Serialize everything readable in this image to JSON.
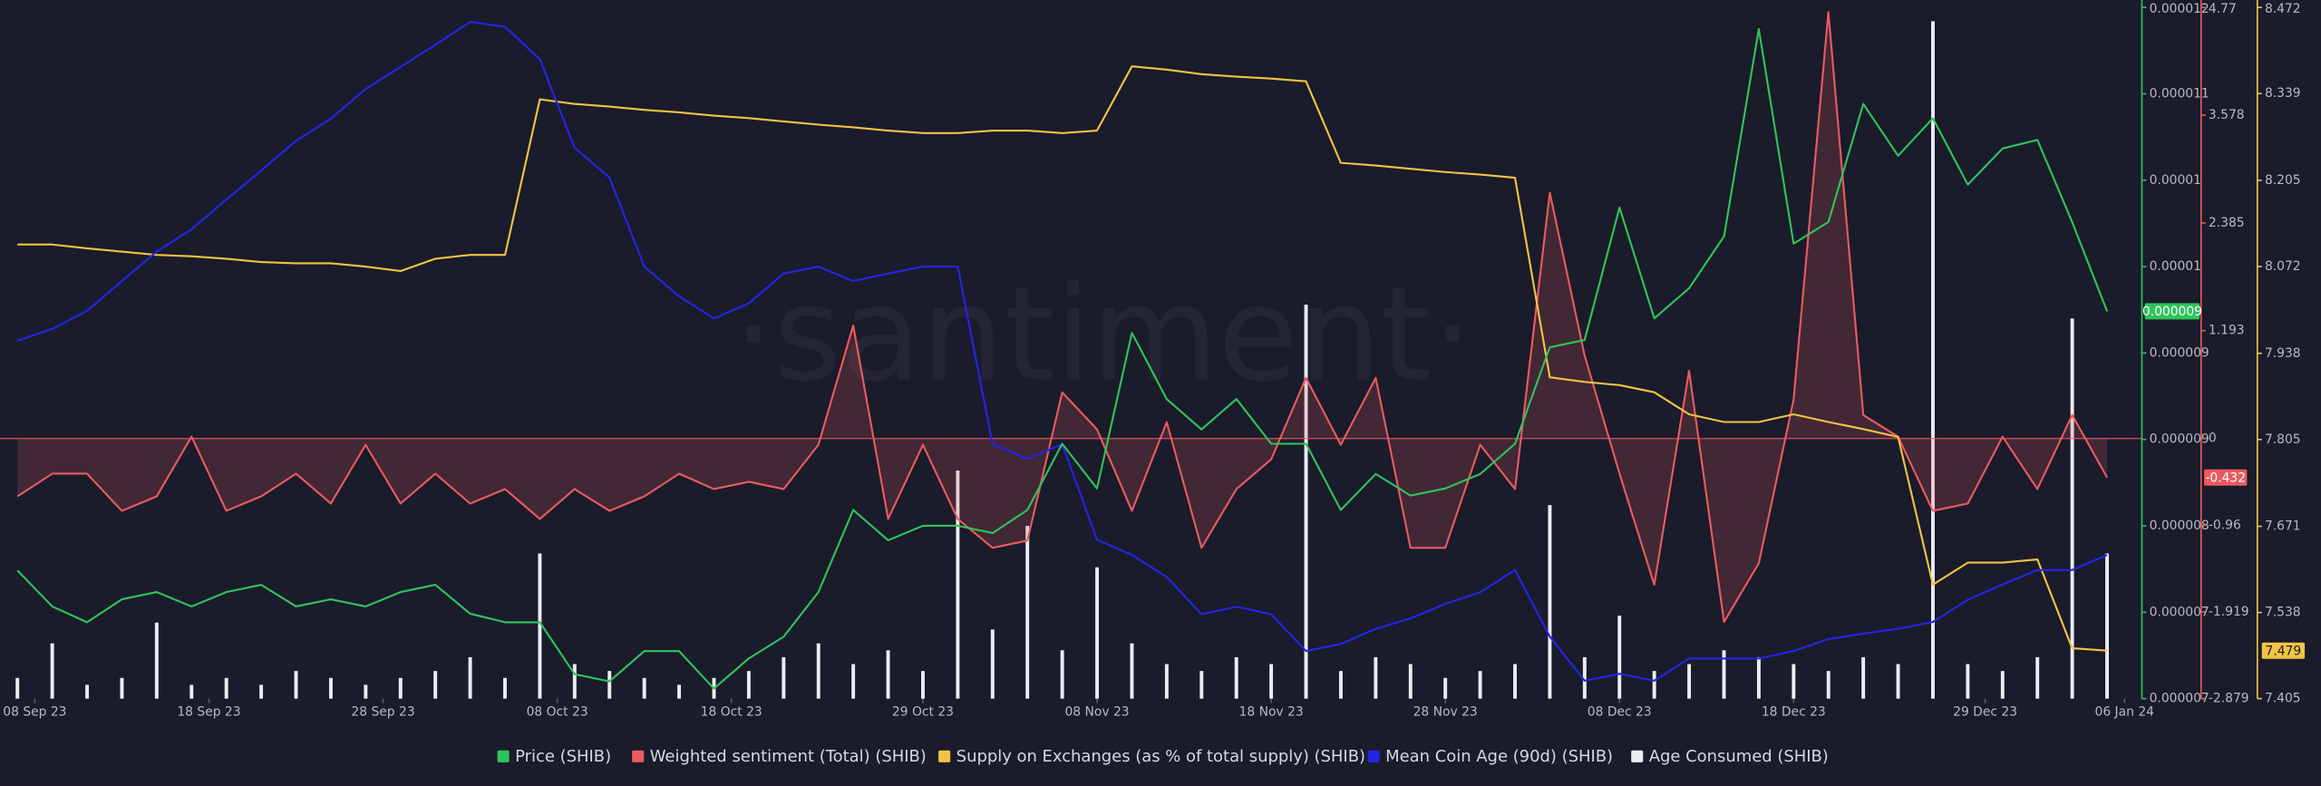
{
  "chart_data": {
    "type": "line",
    "watermark": "·santiment·",
    "x": [
      "2023-09-07",
      "2023-09-09",
      "2023-09-11",
      "2023-09-13",
      "2023-09-15",
      "2023-09-17",
      "2023-09-19",
      "2023-09-21",
      "2023-09-23",
      "2023-09-25",
      "2023-09-27",
      "2023-09-29",
      "2023-10-01",
      "2023-10-03",
      "2023-10-05",
      "2023-10-07",
      "2023-10-09",
      "2023-10-11",
      "2023-10-13",
      "2023-10-15",
      "2023-10-17",
      "2023-10-19",
      "2023-10-21",
      "2023-10-23",
      "2023-10-25",
      "2023-10-27",
      "2023-10-29",
      "2023-10-31",
      "2023-11-02",
      "2023-11-04",
      "2023-11-06",
      "2023-11-08",
      "2023-11-10",
      "2023-11-12",
      "2023-11-14",
      "2023-11-16",
      "2023-11-18",
      "2023-11-20",
      "2023-11-22",
      "2023-11-24",
      "2023-11-26",
      "2023-11-28",
      "2023-11-30",
      "2023-12-02",
      "2023-12-04",
      "2023-12-06",
      "2023-12-08",
      "2023-12-10",
      "2023-12-12",
      "2023-12-14",
      "2023-12-16",
      "2023-12-18",
      "2023-12-20",
      "2023-12-22",
      "2023-12-24",
      "2023-12-26",
      "2023-12-28",
      "2023-12-30",
      "2024-01-01",
      "2024-01-03",
      "2024-01-05"
    ],
    "xlim": [
      "2023-09-06",
      "2024-01-07"
    ],
    "xticks": [
      {
        "value": "2023-09-08",
        "label": "08 Sep 23"
      },
      {
        "value": "2023-09-18",
        "label": "18 Sep 23"
      },
      {
        "value": "2023-09-28",
        "label": "28 Sep 23"
      },
      {
        "value": "2023-10-08",
        "label": "08 Oct 23"
      },
      {
        "value": "2023-10-18",
        "label": "18 Oct 23"
      },
      {
        "value": "2023-10-29",
        "label": "29 Oct 23"
      },
      {
        "value": "2023-11-08",
        "label": "08 Nov 23"
      },
      {
        "value": "2023-11-18",
        "label": "18 Nov 23"
      },
      {
        "value": "2023-11-28",
        "label": "28 Nov 23"
      },
      {
        "value": "2023-12-08",
        "label": "08 Dec 23"
      },
      {
        "value": "2023-12-18",
        "label": "18 Dec 23"
      },
      {
        "value": "2023-12-29",
        "label": "29 Dec 23"
      },
      {
        "value": "2024-01-06",
        "label": "06 Jan 24"
      }
    ],
    "ylim": [
      6.7e-06,
      1.15e-05
    ],
    "yticks": [
      {
        "value": 6.7e-06,
        "label": "0.000007"
      },
      {
        "value": 7.3e-06,
        "label": "0.000007"
      },
      {
        "value": 7.9e-06,
        "label": "0.000008"
      },
      {
        "value": 8.5e-06,
        "label": "0.000009"
      },
      {
        "value": 9.1e-06,
        "label": "0.000009"
      },
      {
        "value": 9.7e-06,
        "label": "0.00001"
      },
      {
        "value": 1.03e-05,
        "label": "0.00001"
      },
      {
        "value": 1.09e-05,
        "label": "0.000011"
      },
      {
        "value": 1.15e-05,
        "label": "0.000012"
      }
    ],
    "y2lim": [
      -2.879,
      4.77
    ],
    "y2ticks": [
      -2.879,
      -1.919,
      -0.96,
      0,
      1.193,
      2.385,
      3.578,
      4.77
    ],
    "y3lim": [
      7.405,
      8.472
    ],
    "y3ticks": [
      7.405,
      7.538,
      7.671,
      7.805,
      7.938,
      8.072,
      8.205,
      8.339,
      8.472
    ],
    "series": [
      {
        "name": "Price (SHIB)",
        "color": "#2fc45a",
        "axis": "y",
        "values": [
          7.59e-06,
          7.34e-06,
          7.23e-06,
          7.39e-06,
          7.44e-06,
          7.34e-06,
          7.44e-06,
          7.49e-06,
          7.34e-06,
          7.39e-06,
          7.34e-06,
          7.44e-06,
          7.49e-06,
          7.29e-06,
          7.23e-06,
          7.23e-06,
          6.87e-06,
          6.82e-06,
          7.03e-06,
          7.03e-06,
          6.77e-06,
          6.98e-06,
          7.13e-06,
          7.44e-06,
          8.01e-06,
          7.8e-06,
          7.9e-06,
          7.9e-06,
          7.85e-06,
          8.01e-06,
          8.47e-06,
          8.16e-06,
          9.24e-06,
          8.78e-06,
          8.57e-06,
          8.78e-06,
          8.47e-06,
          8.47e-06,
          8.01e-06,
          8.26e-06,
          8.11e-06,
          8.16e-06,
          8.26e-06,
          8.47e-06,
          9.14e-06,
          9.19e-06,
          1.011e-05,
          9.34e-06,
          9.55e-06,
          9.91e-06,
          1.135e-05,
          9.86e-06,
          1.001e-05,
          1.083e-05,
          1.047e-05,
          1.073e-05,
          1.027e-05,
          1.052e-05,
          1.058e-05,
          1.001e-05,
          9.39e-06
        ],
        "value_labels": [
          null,
          null,
          null,
          null,
          null,
          null,
          null,
          null,
          null,
          null,
          null,
          null,
          null,
          null,
          null,
          null,
          null,
          null,
          null,
          null,
          null,
          null,
          null,
          null,
          null,
          null,
          null,
          null,
          null,
          null,
          null,
          null,
          null,
          null,
          null,
          null,
          null,
          null,
          null,
          null,
          null,
          null,
          null,
          null,
          null,
          null,
          null,
          null,
          null,
          null,
          null,
          null,
          null,
          null,
          null,
          null,
          null,
          null,
          null,
          null,
          "0.000009"
        ]
      },
      {
        "name": "Weighted sentiment (Total) (SHIB)",
        "color": "#e85b5f",
        "axis": "y2",
        "values": [
          -0.64,
          -0.39,
          -0.39,
          -0.8,
          -0.64,
          0.02,
          -0.8,
          -0.64,
          -0.39,
          -0.72,
          -0.07,
          -0.72,
          -0.39,
          -0.72,
          -0.56,
          -0.89,
          -0.56,
          -0.8,
          -0.64,
          -0.39,
          -0.56,
          -0.48,
          -0.56,
          -0.07,
          1.25,
          -0.89,
          -0.07,
          -0.89,
          -1.21,
          -1.13,
          0.51,
          0.1,
          -0.8,
          0.18,
          -1.21,
          -0.56,
          -0.23,
          0.67,
          -0.07,
          0.67,
          -1.21,
          -1.21,
          -0.07,
          -0.56,
          2.72,
          0.92,
          -0.39,
          -1.62,
          0.75,
          -2.03,
          -1.38,
          0.43,
          4.72,
          0.26,
          0.02,
          -0.8,
          -0.72,
          0.02,
          -0.56,
          0.26,
          -0.432
        ]
      },
      {
        "name": "Supply on Exchanges (as % of total supply) (SHIB)",
        "color": "#f2c443",
        "axis": "y3",
        "values": [
          8.106,
          8.106,
          8.1,
          8.095,
          8.09,
          8.088,
          8.084,
          8.079,
          8.077,
          8.077,
          8.072,
          8.065,
          8.084,
          8.09,
          8.09,
          8.33,
          8.323,
          8.319,
          8.314,
          8.31,
          8.305,
          8.301,
          8.296,
          8.291,
          8.287,
          8.282,
          8.278,
          8.278,
          8.282,
          8.282,
          8.278,
          8.282,
          8.381,
          8.376,
          8.369,
          8.365,
          8.362,
          8.358,
          8.232,
          8.228,
          8.223,
          8.218,
          8.214,
          8.209,
          7.901,
          7.894,
          7.889,
          7.878,
          7.844,
          7.832,
          7.832,
          7.844,
          7.832,
          7.821,
          7.809,
          7.581,
          7.615,
          7.615,
          7.62,
          7.483,
          7.479
        ]
      },
      {
        "name": "Mean Coin Age (90d) (SHIB)",
        "color": "#2424e6",
        "ylim": [
          0,
          100
        ],
        "values": [
          51.8,
          53.5,
          56.1,
          60.4,
          64.7,
          67.9,
          72.2,
          76.4,
          80.7,
          83.9,
          88.2,
          91.4,
          94.6,
          97.9,
          97.2,
          92.5,
          79.7,
          75.4,
          62.5,
          58.2,
          55.0,
          57.2,
          61.5,
          62.5,
          60.4,
          61.5,
          62.5,
          62.5,
          36.8,
          34.7,
          36.8,
          23.0,
          20.8,
          17.6,
          12.2,
          13.3,
          12.2,
          6.9,
          7.9,
          10.1,
          11.6,
          13.7,
          15.4,
          18.6,
          9.0,
          2.6,
          3.6,
          2.6,
          5.8,
          5.8,
          5.8,
          6.9,
          8.6,
          9.4,
          10.1,
          11.1,
          14.3,
          16.5,
          18.6,
          18.6,
          20.8
        ]
      },
      {
        "name": "Age Consumed (SHIB)",
        "color": "#ececf2",
        "type": "bar",
        "ylim": [
          0,
          100
        ],
        "values": [
          3,
          8,
          2,
          3,
          11,
          2,
          3,
          2,
          4,
          3,
          2,
          3,
          4,
          6,
          3,
          21,
          5,
          4,
          3,
          2,
          3,
          4,
          6,
          8,
          5,
          7,
          4,
          33,
          10,
          25,
          7,
          19,
          8,
          5,
          4,
          6,
          5,
          57,
          4,
          6,
          5,
          3,
          4,
          5,
          28,
          6,
          12,
          4,
          5,
          7,
          6,
          5,
          4,
          6,
          5,
          98,
          5,
          4,
          6,
          55,
          21
        ]
      }
    ]
  }
}
